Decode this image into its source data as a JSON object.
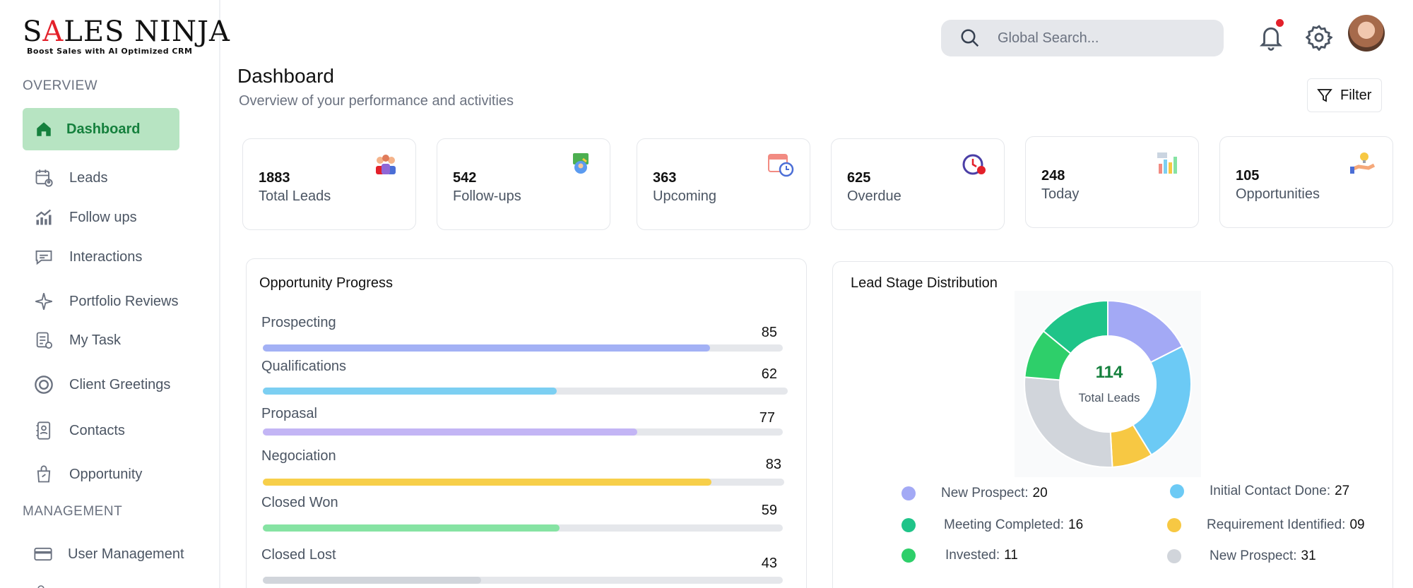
{
  "brand": {
    "name_pre": "S",
    "name_a": "A",
    "name_post": "LES NINJA",
    "tagline": "Boost Sales with AI Optimized CRM"
  },
  "sidebar": {
    "overview_label": "OVERVIEW",
    "management_label": "MANAGEMENT",
    "items": [
      {
        "label": "Dashboard",
        "icon": "home-icon",
        "active": true
      },
      {
        "label": "Leads",
        "icon": "calendar-user-icon"
      },
      {
        "label": "Follow ups",
        "icon": "chart-up-icon"
      },
      {
        "label": "Interactions",
        "icon": "chat-bubble-icon"
      },
      {
        "label": "Portfolio Reviews",
        "icon": "sparkle-icon"
      },
      {
        "label": "My Task",
        "icon": "task-list-icon"
      },
      {
        "label": "Client Greetings",
        "icon": "target-icon"
      },
      {
        "label": "Contacts",
        "icon": "contact-card-icon"
      },
      {
        "label": "Opportunity",
        "icon": "shopping-bag-icon"
      },
      {
        "label": "User Management",
        "icon": "credit-card-icon"
      }
    ]
  },
  "header": {
    "search_placeholder": "Global Search...",
    "title": "Dashboard",
    "subtitle": "Overview of your performance and activities",
    "filter_label": "Filter"
  },
  "stats": [
    {
      "value": "1883",
      "label": "Total Leads",
      "icon": "team-icon"
    },
    {
      "value": "542",
      "label": "Follow-ups",
      "icon": "followup-icon"
    },
    {
      "value": "363",
      "label": "Upcoming",
      "icon": "calendar-clock-icon"
    },
    {
      "value": "625",
      "label": "Overdue",
      "icon": "timer-alert-icon"
    },
    {
      "value": "248",
      "label": "Today",
      "icon": "bar-report-icon"
    },
    {
      "value": "105",
      "label": "Opportunities",
      "icon": "idea-hand-icon"
    }
  ],
  "opportunity_progress": {
    "title": "Opportunity Progress",
    "stages": [
      {
        "label": "Prospecting",
        "value": "85",
        "fill": 0.86,
        "color": "#a3b1f5"
      },
      {
        "label": "Qualifications",
        "value": "62",
        "fill": 0.56,
        "color": "#7ccff2"
      },
      {
        "label": "Propasal",
        "value": "77",
        "fill": 0.72,
        "color": "#c3b5f5"
      },
      {
        "label": "Negociation",
        "value": "83",
        "fill": 0.86,
        "color": "#f7cf4a"
      },
      {
        "label": "Closed Won",
        "value": "59",
        "fill": 0.57,
        "color": "#86e3a3"
      },
      {
        "label": "Closed Lost",
        "value": "43",
        "fill": 0.42,
        "color": "#d1d5db"
      }
    ]
  },
  "lead_stage": {
    "title": "Lead Stage Distribution",
    "total": "114",
    "total_label": "Total Leads",
    "legend": [
      {
        "label": "New Prospect:",
        "count": "20",
        "color": "#a3a9f5"
      },
      {
        "label": "Initial Contact Done:",
        "count": "27",
        "color": "#6ccaf5"
      },
      {
        "label": "Meeting Completed:",
        "count": "16",
        "color": "#1fc489"
      },
      {
        "label": "Requirement Identified:",
        "count": "09",
        "color": "#f7c843"
      },
      {
        "label": "Invested:",
        "count": "11",
        "color": "#2ecf6a"
      },
      {
        "label": "New Prospect:",
        "count": "31",
        "color": "#d1d5db"
      }
    ]
  },
  "chart_data": {
    "type": "pie",
    "title": "Lead Stage Distribution",
    "categories": [
      "New Prospect",
      "Initial Contact Done",
      "Requirement Identified",
      "New Prospect",
      "Invested",
      "Meeting Completed"
    ],
    "values": [
      20,
      27,
      9,
      31,
      11,
      16
    ],
    "colors": [
      "#a3a9f5",
      "#6ccaf5",
      "#f7c843",
      "#d1d5db",
      "#2ecf6a",
      "#1fc489"
    ]
  }
}
